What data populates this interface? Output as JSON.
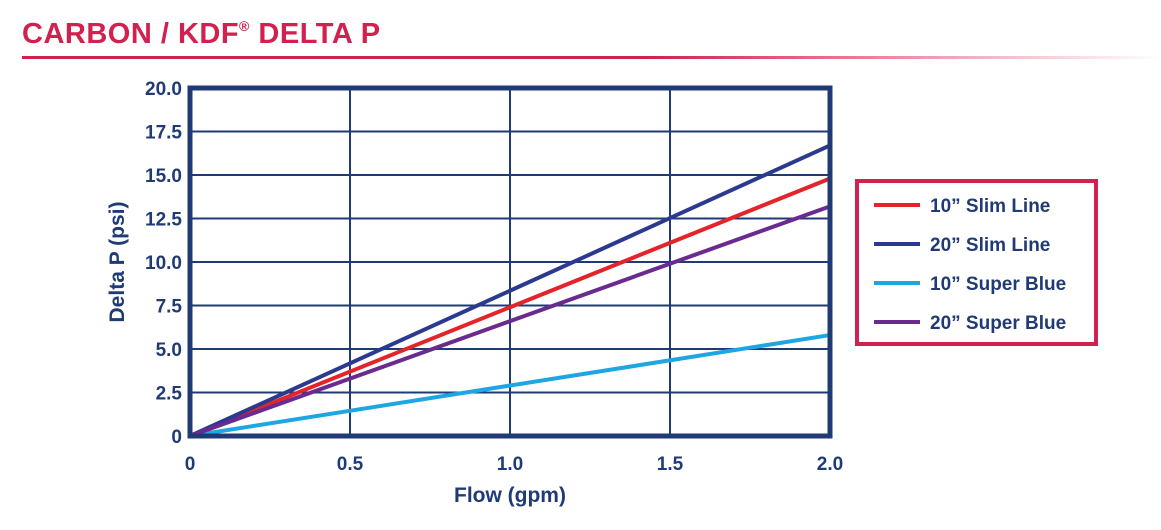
{
  "header": {
    "title_main": "CARBON / KDF",
    "title_reg": "®",
    "title_tail": " DELTA P"
  },
  "colors": {
    "title": "#d2204f",
    "axis": "#1f3a75",
    "legend_border": "#d2204f"
  },
  "chart_data": {
    "type": "line",
    "title": "CARBON / KDF® DELTA P",
    "xlabel": "Flow (gpm)",
    "ylabel": "Delta P (psi)",
    "xlim": [
      0,
      2.0
    ],
    "ylim": [
      0,
      20.0
    ],
    "xticks": [
      "0",
      "0.5",
      "1.0",
      "1.5",
      "2.0"
    ],
    "yticks": [
      "0",
      "2.5",
      "5.0",
      "7.5",
      "10.0",
      "12.5",
      "15.0",
      "17.5",
      "20.0"
    ],
    "grid": true,
    "legend_position": "right",
    "series": [
      {
        "name": "10” Slim Line",
        "color": "#e3242b",
        "x": [
          0,
          2.0
        ],
        "y": [
          0,
          14.8
        ]
      },
      {
        "name": "20” Slim Line",
        "color": "#2b3a8f",
        "x": [
          0,
          2.0
        ],
        "y": [
          0,
          16.7
        ]
      },
      {
        "name": "10” Super Blue",
        "color": "#1ea6e3",
        "x": [
          0,
          2.0
        ],
        "y": [
          0,
          5.8
        ]
      },
      {
        "name": "20” Super Blue",
        "color": "#6a2a8f",
        "x": [
          0,
          2.0
        ],
        "y": [
          0,
          13.2
        ]
      }
    ]
  }
}
